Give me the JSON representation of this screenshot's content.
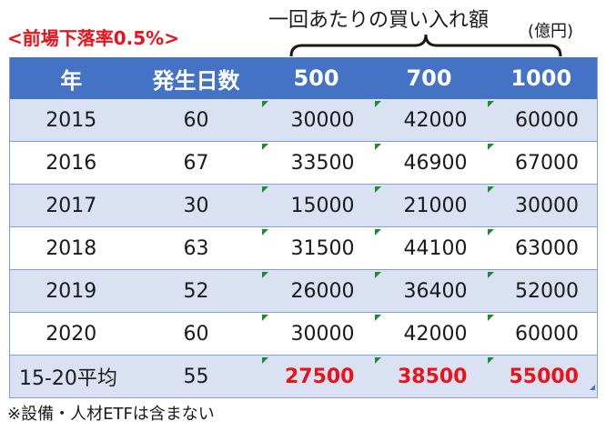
{
  "title": "<前場下落率0.5%>",
  "top_label": "一回あたりの買い入れ額",
  "unit": "(億円)",
  "headers": [
    "年",
    "発生日数",
    "500",
    "700",
    "1000"
  ],
  "rows": [
    {
      "year": "2015",
      "days": "60",
      "v500": "30000",
      "v700": "42000",
      "v1000": "60000"
    },
    {
      "year": "2016",
      "days": "67",
      "v500": "33500",
      "v700": "46900",
      "v1000": "67000"
    },
    {
      "year": "2017",
      "days": "30",
      "v500": "15000",
      "v700": "21000",
      "v1000": "30000"
    },
    {
      "year": "2018",
      "days": "63",
      "v500": "31500",
      "v700": "44100",
      "v1000": "63000"
    },
    {
      "year": "2019",
      "days": "52",
      "v500": "26000",
      "v700": "36400",
      "v1000": "52000"
    },
    {
      "year": "2020",
      "days": "60",
      "v500": "30000",
      "v700": "42000",
      "v1000": "60000"
    }
  ],
  "average": {
    "label": "15-20平均",
    "days": "55",
    "v500": "27500",
    "v700": "38500",
    "v1000": "55000"
  },
  "footnote": "※設備・人材ETFは含まない",
  "colors": {
    "header_bg": "#4472c4",
    "band": "#d9e1f2",
    "accent_red": "#e8141b",
    "marker_green": "#1e8c2e"
  }
}
